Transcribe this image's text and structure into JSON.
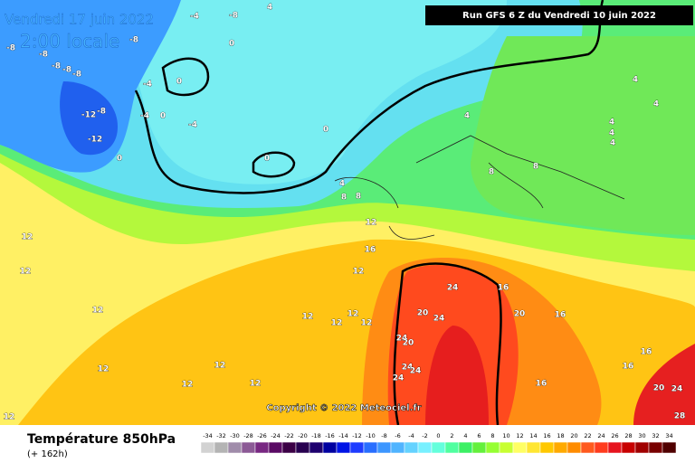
{
  "header": {
    "date": "Vendredi 17 juin 2022",
    "time": "2:00 locale",
    "run": "Run GFS 6 Z du Vendredi 10 juin 2022"
  },
  "copyright": "Copyright © 2022 Meteociel.fr",
  "legend": {
    "title": "Température 850hPa",
    "lead": "(+ 162h)",
    "ticks": [
      -34,
      -32,
      -30,
      -28,
      -26,
      -24,
      -22,
      -20,
      -18,
      -16,
      -14,
      -12,
      -10,
      -8,
      -6,
      -4,
      -2,
      0,
      2,
      4,
      6,
      8,
      10,
      12,
      14,
      16,
      18,
      20,
      22,
      24,
      26,
      28,
      30,
      32,
      34
    ],
    "colors": [
      "#d2d2d2",
      "#b4b4b4",
      "#a08caa",
      "#8c5a96",
      "#782882",
      "#5a0a64",
      "#3c0046",
      "#280050",
      "#1e006e",
      "#0000a0",
      "#0014e6",
      "#1e3cff",
      "#286eff",
      "#3c96ff",
      "#50b4ff",
      "#64d2ff",
      "#78f0ff",
      "#64ffdc",
      "#50ffa0",
      "#3cf064",
      "#64f03c",
      "#96ff32",
      "#c8ff32",
      "#ffff64",
      "#ffe632",
      "#ffc800",
      "#ffaa00",
      "#ff8c00",
      "#ff5a1e",
      "#ff3c1e",
      "#e6141e",
      "#c80000",
      "#a00000",
      "#780000",
      "#500000"
    ]
  },
  "contour_labels": [
    -4,
    -8,
    -8,
    -8,
    -8,
    -8,
    -8,
    -8,
    -4,
    0,
    0,
    4,
    -4,
    0,
    -4,
    -12,
    -8,
    -12,
    0,
    0,
    0,
    4,
    8,
    8,
    4,
    4,
    4,
    4,
    4,
    4,
    8,
    8,
    12,
    12,
    12,
    12,
    12,
    12,
    12,
    12,
    16,
    24,
    20,
    24,
    16,
    20,
    16,
    24,
    20,
    24,
    24,
    24,
    16,
    16,
    16,
    20,
    24,
    28,
    12,
    12,
    12,
    12,
    12,
    12
  ]
}
